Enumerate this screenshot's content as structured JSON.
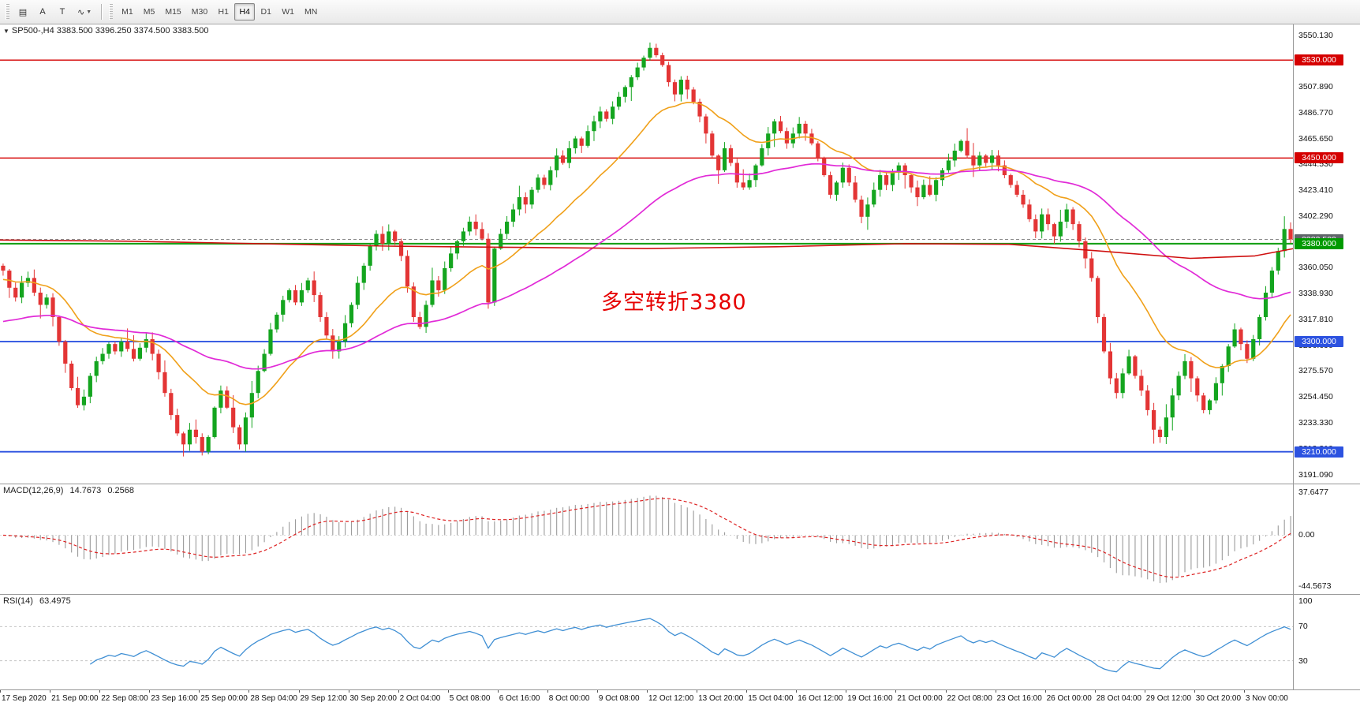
{
  "toolbar": {
    "tools": [
      {
        "name": "chart-mode-icon",
        "glyph": "▤"
      },
      {
        "name": "cursor-a-tool",
        "glyph": "A"
      },
      {
        "name": "text-label-tool",
        "glyph": "T"
      },
      {
        "name": "indicator-zigzag-tool",
        "glyph": "∿",
        "caret": true
      }
    ],
    "timeframes": [
      "M1",
      "M5",
      "M15",
      "M30",
      "H1",
      "H4",
      "D1",
      "W1",
      "MN"
    ],
    "active_timeframe": "H4"
  },
  "main_chart": {
    "header": "SP500-,H4 3383.500 3396.250 3374.500 3383.500",
    "annotation": "多空转折3380"
  },
  "macd_panel": {
    "label": "MACD(12,26,9)",
    "main_value": "14.7673",
    "signal_value": "0.2568",
    "axis": [
      "37.6477",
      "0.00",
      "-44.5673"
    ]
  },
  "rsi_panel": {
    "label": "RSI(14)",
    "value": "63.4975",
    "axis": [
      "100",
      "70",
      "30"
    ]
  },
  "time_axis": {
    "labels": [
      "17 Sep 2020",
      "21 Sep 00:00",
      "22 Sep 08:00",
      "23 Sep 16:00",
      "25 Sep 00:00",
      "28 Sep 04:00",
      "29 Sep 12:00",
      "30 Sep 20:00",
      "2 Oct 04:00",
      "5 Oct 08:00",
      "6 Oct 16:00",
      "8 Oct 00:00",
      "9 Oct 08:00",
      "12 Oct 12:00",
      "13 Oct 20:00",
      "15 Oct 04:00",
      "16 Oct 12:00",
      "19 Oct 16:00",
      "21 Oct 00:00",
      "22 Oct 08:00",
      "23 Oct 16:00",
      "26 Oct 00:00",
      "28 Oct 04:00",
      "29 Oct 12:00",
      "30 Oct 20:00",
      "3 Nov 00:00"
    ]
  },
  "chart_data": {
    "type": "candlestick",
    "symbol": "SP500-",
    "timeframe": "H4",
    "last_candle": {
      "open": 3383.5,
      "high": 3396.25,
      "low": 3374.5,
      "close": 3383.5
    },
    "first_open": 3362,
    "up_color": "#14a51f",
    "down_color": "#e33535",
    "closes": [
      3358,
      3344,
      3336,
      3348,
      3352,
      3340,
      3330,
      3336,
      3320,
      3300,
      3282,
      3262,
      3248,
      3255,
      3272,
      3284,
      3290,
      3298,
      3292,
      3300,
      3294,
      3286,
      3295,
      3302,
      3290,
      3275,
      3258,
      3240,
      3225,
      3216,
      3228,
      3222,
      3210,
      3222,
      3246,
      3260,
      3246,
      3230,
      3216,
      3238,
      3258,
      3276,
      3290,
      3310,
      3322,
      3334,
      3342,
      3332,
      3342,
      3350,
      3338,
      3320,
      3305,
      3292,
      3300,
      3315,
      3330,
      3348,
      3362,
      3378,
      3388,
      3380,
      3390,
      3382,
      3370,
      3345,
      3320,
      3312,
      3330,
      3350,
      3342,
      3360,
      3372,
      3382,
      3390,
      3398,
      3392,
      3384,
      3332,
      3376,
      3388,
      3398,
      3408,
      3418,
      3412,
      3424,
      3434,
      3428,
      3440,
      3452,
      3446,
      3458,
      3466,
      3460,
      3472,
      3480,
      3488,
      3482,
      3492,
      3500,
      3508,
      3516,
      3524,
      3532,
      3540,
      3534,
      3526,
      3512,
      3502,
      3514,
      3506,
      3496,
      3484,
      3470,
      3452,
      3440,
      3458,
      3446,
      3430,
      3426,
      3432,
      3444,
      3458,
      3470,
      3480,
      3472,
      3462,
      3470,
      3478,
      3470,
      3462,
      3450,
      3436,
      3420,
      3430,
      3442,
      3430,
      3416,
      3402,
      3412,
      3424,
      3436,
      3428,
      3438,
      3444,
      3436,
      3426,
      3418,
      3428,
      3420,
      3432,
      3440,
      3448,
      3456,
      3464,
      3452,
      3444,
      3452,
      3446,
      3452,
      3444,
      3436,
      3428,
      3420,
      3412,
      3400,
      3390,
      3404,
      3396,
      3386,
      3398,
      3408,
      3396,
      3382,
      3368,
      3352,
      3320,
      3292,
      3270,
      3258,
      3274,
      3288,
      3272,
      3260,
      3244,
      3228,
      3222,
      3238,
      3256,
      3272,
      3284,
      3270,
      3256,
      3244,
      3252,
      3266,
      3280,
      3296,
      3310,
      3298,
      3286,
      3302,
      3320,
      3340,
      3358,
      3374,
      3392,
      3383.5
    ],
    "y_ticks": [
      3550.13,
      3529.01,
      3507.89,
      3486.77,
      3465.65,
      3444.53,
      3423.41,
      3402.29,
      3381.17,
      3360.05,
      3338.93,
      3317.81,
      3296.69,
      3275.57,
      3254.45,
      3233.33,
      3212.21,
      3191.09
    ],
    "h_lines": [
      {
        "price": 3530,
        "color": "#d50000",
        "w": 1.4
      },
      {
        "price": 3450,
        "color": "#d50000",
        "w": 1.4
      },
      {
        "price": 3383.5,
        "color": "#8a8a8a",
        "w": 1,
        "dash": "4,3"
      },
      {
        "price": 3380,
        "color": "#17a017",
        "w": 2.2
      },
      {
        "price": 3300,
        "color": "#2c52e0",
        "w": 1.8
      },
      {
        "price": 3210,
        "color": "#2c52e0",
        "w": 1.8
      }
    ],
    "price_badges": [
      {
        "price": 3530,
        "label": "3530.000",
        "color": "#d50000"
      },
      {
        "price": 3450,
        "label": "3450.000",
        "color": "#d50000"
      },
      {
        "price": 3383.5,
        "label": "3383.500",
        "color": "#5f6569"
      },
      {
        "price": 3380,
        "label": "3380.000",
        "color": "#009a00"
      },
      {
        "price": 3300,
        "label": "3300.000",
        "color": "#2c52e0"
      },
      {
        "price": 3210,
        "label": "3210.000",
        "color": "#2c52e0"
      }
    ],
    "moving_averages": [
      {
        "name": "ma-fast-orange",
        "type": "ema",
        "period": 20,
        "seed": 3350,
        "color": "#f0a019",
        "width": 1.6
      },
      {
        "name": "ma-slow-magenta",
        "type": "ema",
        "period": 60,
        "seed": 3315,
        "color": "#e12ad7",
        "width": 1.7
      },
      {
        "name": "ma-long-red",
        "type": "anchors",
        "color": "#cf1010",
        "width": 1.6,
        "points": [
          [
            0,
            3383
          ],
          [
            0.1,
            3382
          ],
          [
            0.2,
            3380
          ],
          [
            0.3,
            3378
          ],
          [
            0.4,
            3377
          ],
          [
            0.5,
            3376
          ],
          [
            0.6,
            3377.5
          ],
          [
            0.7,
            3380
          ],
          [
            0.78,
            3379.5
          ],
          [
            0.85,
            3374
          ],
          [
            0.92,
            3368
          ],
          [
            0.97,
            3370
          ],
          [
            1,
            3376
          ]
        ]
      }
    ],
    "macd": {
      "fast": 12,
      "slow": 26,
      "signal": 9,
      "axis_values": [
        37.6477,
        0,
        -44.5673
      ],
      "hist_color": "#9b9b9b",
      "signal_color": "#dd2222"
    },
    "rsi": {
      "period": 14,
      "levels": [
        70,
        30
      ],
      "color": "#3f8fd4",
      "range": [
        0,
        100
      ]
    }
  }
}
